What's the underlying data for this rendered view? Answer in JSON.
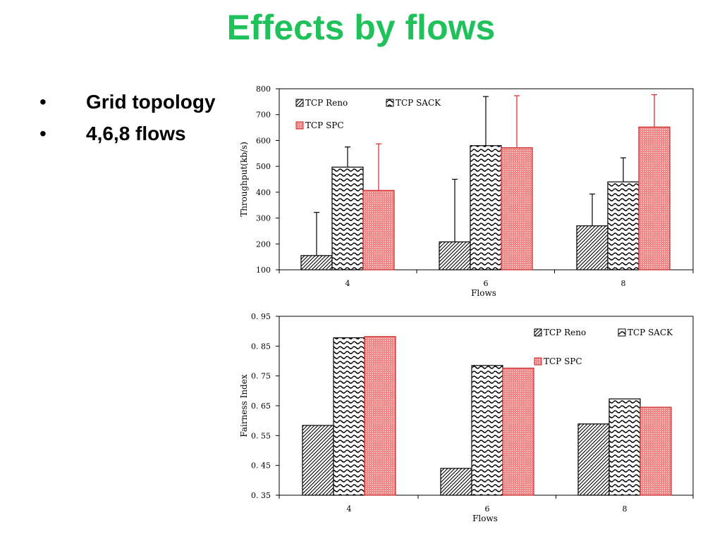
{
  "slide": {
    "title": "Effects by flows",
    "bullets": [
      "Grid topology",
      "4,6,8 flows"
    ],
    "bullet_marker": "•"
  },
  "colors": {
    "title": "#1fc25a",
    "reno": "#ffffff",
    "sack": "#ffffff",
    "spc": "#f08a8a",
    "spc_edge": "#cc2222",
    "spc_error": "#dd2222",
    "axis": "#000000"
  },
  "chart_data": [
    {
      "type": "bar",
      "categories": [
        "4",
        "6",
        "8"
      ],
      "xlabel": "Flows",
      "ylabel": "Throughput(kb/s)",
      "ylim": [
        100,
        800
      ],
      "yticks": [
        "100",
        "200",
        "300",
        "400",
        "500",
        "600",
        "700",
        "800"
      ],
      "series": [
        {
          "name": "TCP Reno",
          "values": [
            155,
            208,
            270
          ],
          "error_top": [
            322,
            450,
            393
          ]
        },
        {
          "name": "TCP SACK",
          "values": [
            497,
            580,
            440
          ],
          "error_top": [
            575,
            770,
            533
          ]
        },
        {
          "name": "TCP SPC",
          "values": [
            407,
            572,
            652
          ],
          "error_top": [
            587,
            773,
            777
          ]
        }
      ],
      "legend_location": "top-left",
      "grid": false
    },
    {
      "type": "bar",
      "categories": [
        "4",
        "6",
        "8"
      ],
      "xlabel": "Flows",
      "ylabel": "Fairness Index",
      "ylim": [
        0.35,
        0.95
      ],
      "yticks": [
        "0. 35",
        "0. 45",
        "0. 55",
        "0. 65",
        "0. 75",
        "0. 85",
        "0. 95"
      ],
      "series": [
        {
          "name": "TCP Reno",
          "values": [
            0.584,
            0.44,
            0.589
          ]
        },
        {
          "name": "TCP SACK",
          "values": [
            0.878,
            0.785,
            0.673
          ]
        },
        {
          "name": "TCP SPC",
          "values": [
            0.882,
            0.776,
            0.645
          ]
        }
      ],
      "legend_location": "top-right",
      "grid": false
    }
  ]
}
